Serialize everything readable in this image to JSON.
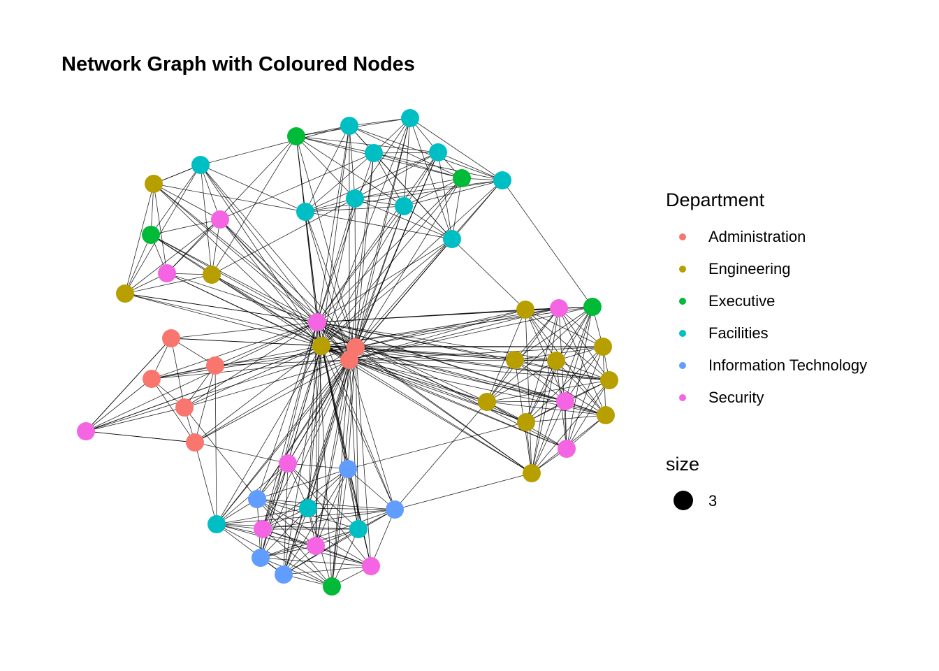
{
  "title": "Network Graph with Coloured Nodes",
  "legend": {
    "colour_title": "Department",
    "departments": [
      {
        "name": "Administration",
        "color": "#F8766D"
      },
      {
        "name": "Engineering",
        "color": "#B79F00"
      },
      {
        "name": "Executive",
        "color": "#00BA38"
      },
      {
        "name": "Facilities",
        "color": "#00BFC4"
      },
      {
        "name": "Information Technology",
        "color": "#619CFF"
      },
      {
        "name": "Security",
        "color": "#F564E3"
      }
    ],
    "size_title": "size",
    "size_value": "3"
  },
  "chart_data": {
    "type": "network",
    "edge_color": "#000000",
    "node_count": 58,
    "nodes": [
      {
        "id": 0,
        "department": "Facilities"
      },
      {
        "id": 1,
        "department": "Facilities"
      },
      {
        "id": 2,
        "department": "Executive"
      },
      {
        "id": 3,
        "department": "Facilities"
      },
      {
        "id": 4,
        "department": "Facilities"
      },
      {
        "id": 5,
        "department": "Executive"
      },
      {
        "id": 6,
        "department": "Facilities"
      },
      {
        "id": 7,
        "department": "Facilities"
      },
      {
        "id": 8,
        "department": "Engineering"
      },
      {
        "id": 9,
        "department": "Security"
      },
      {
        "id": 10,
        "department": "Facilities"
      },
      {
        "id": 11,
        "department": "Facilities"
      },
      {
        "id": 12,
        "department": "Facilities"
      },
      {
        "id": 13,
        "department": "Executive"
      },
      {
        "id": 14,
        "department": "Facilities"
      },
      {
        "id": 15,
        "department": "Security"
      },
      {
        "id": 16,
        "department": "Engineering"
      },
      {
        "id": 17,
        "department": "Engineering"
      },
      {
        "id": 18,
        "department": "Security"
      },
      {
        "id": 19,
        "department": "Engineering"
      },
      {
        "id": 20,
        "department": "Administration"
      },
      {
        "id": 21,
        "department": "Administration"
      },
      {
        "id": 22,
        "department": "Administration"
      },
      {
        "id": 23,
        "department": "Administration"
      },
      {
        "id": 24,
        "department": "Administration"
      },
      {
        "id": 25,
        "department": "Administration"
      },
      {
        "id": 26,
        "department": "Administration"
      },
      {
        "id": 27,
        "department": "Security"
      },
      {
        "id": 28,
        "department": "Engineering"
      },
      {
        "id": 29,
        "department": "Security"
      },
      {
        "id": 30,
        "department": "Executive"
      },
      {
        "id": 31,
        "department": "Engineering"
      },
      {
        "id": 32,
        "department": "Engineering"
      },
      {
        "id": 33,
        "department": "Engineering"
      },
      {
        "id": 34,
        "department": "Engineering"
      },
      {
        "id": 35,
        "department": "Engineering"
      },
      {
        "id": 36,
        "department": "Engineering"
      },
      {
        "id": 37,
        "department": "Security"
      },
      {
        "id": 38,
        "department": "Engineering"
      },
      {
        "id": 39,
        "department": "Engineering"
      },
      {
        "id": 40,
        "department": "Security"
      },
      {
        "id": 41,
        "department": "Engineering"
      },
      {
        "id": 42,
        "department": "Security"
      },
      {
        "id": 43,
        "department": "Administration"
      },
      {
        "id": 44,
        "department": "Security"
      },
      {
        "id": 45,
        "department": "Information Technology"
      },
      {
        "id": 46,
        "department": "Information Technology"
      },
      {
        "id": 47,
        "department": "Facilities"
      },
      {
        "id": 48,
        "department": "Information Technology"
      },
      {
        "id": 49,
        "department": "Facilities"
      },
      {
        "id": 50,
        "department": "Security"
      },
      {
        "id": 51,
        "department": "Facilities"
      },
      {
        "id": 52,
        "department": "Security"
      },
      {
        "id": 53,
        "department": "Information Technology"
      },
      {
        "id": 54,
        "department": "Information Technology"
      },
      {
        "id": 55,
        "department": "Security"
      },
      {
        "id": 56,
        "department": "Executive"
      },
      {
        "id": 57,
        "department": "Administration"
      }
    ]
  }
}
